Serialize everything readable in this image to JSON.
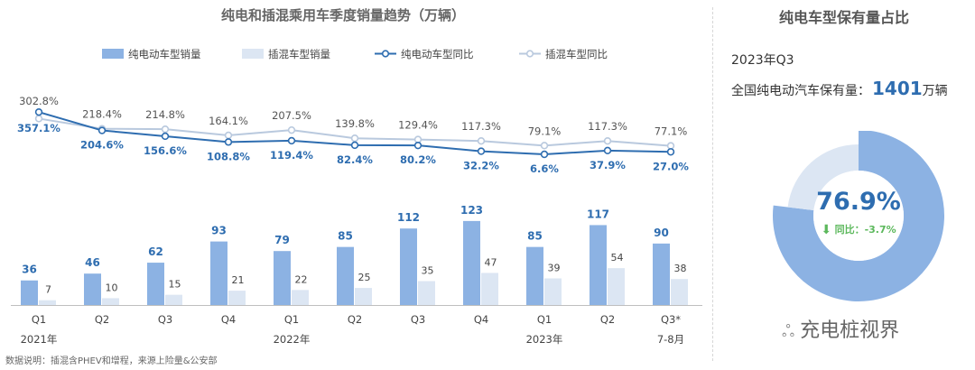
{
  "main_title": "纯电和插混乘用车季度销量趋势（万辆）",
  "legend": {
    "bev_sales": "纯电动车型销量",
    "phev_sales": "插混车型销量",
    "bev_yoy": "纯电动车型同比",
    "phev_yoy": "插混车型同比"
  },
  "right": {
    "title": "纯电车型保有量占比",
    "quarter": "2023年Q3",
    "stock_label": "全国纯电动汽车保有量：",
    "stock_value": "1401",
    "stock_unit": "万辆",
    "share_pct": "76.9%",
    "yoy_label": "同比：",
    "yoy_value": "-3.7%"
  },
  "source_note": "数据说明：插混含PHEV和增程，来源上险量&公安部",
  "brand": "充电桩视界",
  "colors": {
    "bev": "#8cb2e3",
    "phev": "#dce6f3",
    "bev_line": "#2e6db0",
    "phev_line": "#b9c9de",
    "down": "#5cb85c"
  },
  "chart_data": [
    {
      "type": "bar",
      "title": "纯电和插混乘用车季度销量趋势（万辆）",
      "categories": [
        "Q1",
        "Q2",
        "Q3",
        "Q4",
        "Q1",
        "Q2",
        "Q3",
        "Q4",
        "Q1",
        "Q2",
        "Q3*"
      ],
      "category_groups": [
        {
          "label": "2021年",
          "start": 0
        },
        {
          "label": "2022年",
          "start": 4
        },
        {
          "label": "2023年",
          "start": 8
        },
        {
          "label": "7-8月",
          "start": 10
        }
      ],
      "series": [
        {
          "name": "纯电动车型销量",
          "kind": "bar",
          "values": [
            36,
            46,
            62,
            93,
            79,
            85,
            112,
            123,
            85,
            117,
            90
          ]
        },
        {
          "name": "插混车型销量",
          "kind": "bar",
          "values": [
            7,
            10,
            15,
            21,
            22,
            25,
            35,
            47,
            39,
            54,
            38
          ]
        },
        {
          "name": "纯电动车型同比",
          "kind": "line",
          "labels": [
            "357.1%",
            "204.6%",
            "156.6%",
            "108.8%",
            "119.4%",
            "82.4%",
            "80.2%",
            "32.2%",
            "6.6%",
            "37.9%",
            "27.0%"
          ],
          "values": [
            357.1,
            204.6,
            156.6,
            108.8,
            119.4,
            82.4,
            80.2,
            32.2,
            6.6,
            37.9,
            27.0
          ]
        },
        {
          "name": "插混车型同比",
          "kind": "line",
          "labels": [
            "302.8%",
            "218.4%",
            "214.8%",
            "164.1%",
            "207.5%",
            "139.8%",
            "129.4%",
            "117.3%",
            "79.1%",
            "117.3%",
            "77.1%"
          ],
          "values": [
            302.8,
            218.4,
            214.8,
            164.1,
            207.5,
            139.8,
            129.4,
            117.3,
            79.1,
            117.3,
            77.1
          ]
        }
      ],
      "legend_position": "top",
      "grid": false
    },
    {
      "type": "pie",
      "title": "纯电车型保有量占比",
      "labels": [
        "纯电",
        "其他"
      ],
      "values": [
        76.9,
        23.1
      ],
      "center_label": "76.9%"
    }
  ]
}
